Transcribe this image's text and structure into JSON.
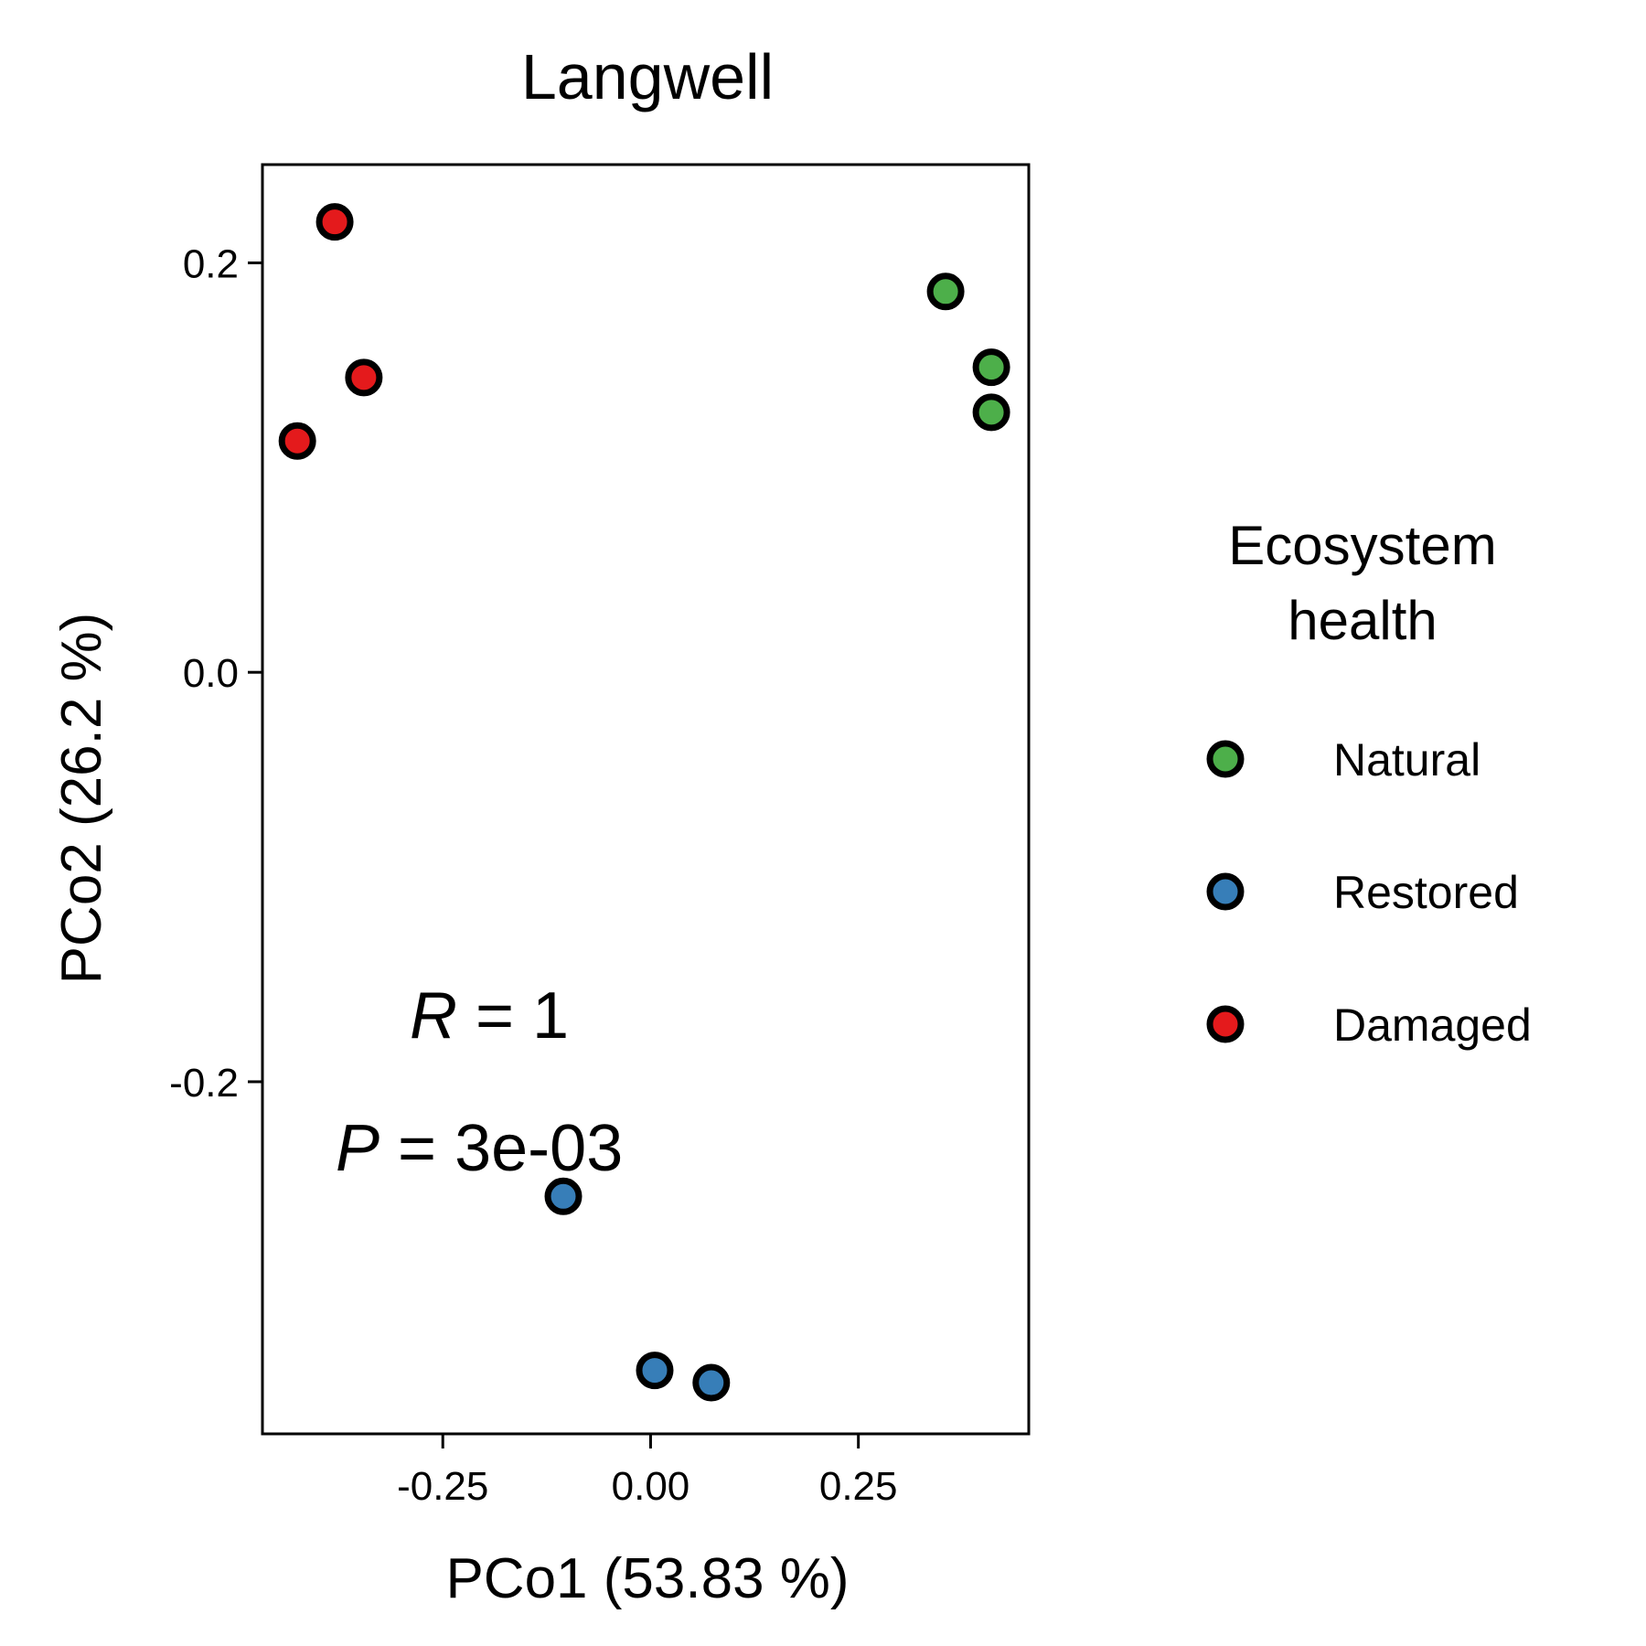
{
  "chart_data": {
    "type": "scatter",
    "title": "Langwell",
    "xlabel": "PCo1 (53.83 %)",
    "ylabel": "PCo2 (26.2 %)",
    "xlim": [
      -0.467,
      0.455
    ],
    "ylim": [
      -0.372,
      0.248
    ],
    "xticks": [
      -0.25,
      0.0,
      0.25
    ],
    "xtick_labels": [
      "-0.25",
      "0.00",
      "0.25"
    ],
    "yticks": [
      -0.2,
      0.0,
      0.2
    ],
    "ytick_labels": [
      "-0.2",
      "0.0",
      "0.2"
    ],
    "grid": false,
    "legend": {
      "title": "Ecosystem health",
      "title_lines": [
        "Ecosystem",
        "health"
      ],
      "placement": "right"
    },
    "series": [
      {
        "name": "Natural",
        "color": "#4daf4a",
        "points": [
          {
            "x": 0.355,
            "y": 0.186
          },
          {
            "x": 0.41,
            "y": 0.149
          },
          {
            "x": 0.41,
            "y": 0.127
          }
        ]
      },
      {
        "name": "Restored",
        "color": "#377eb8",
        "points": [
          {
            "x": -0.105,
            "y": -0.256
          },
          {
            "x": 0.005,
            "y": -0.341
          },
          {
            "x": 0.073,
            "y": -0.347
          }
        ]
      },
      {
        "name": "Damaged",
        "color": "#e41a1c",
        "points": [
          {
            "x": -0.38,
            "y": 0.22
          },
          {
            "x": -0.345,
            "y": 0.144
          },
          {
            "x": -0.425,
            "y": 0.113
          }
        ]
      }
    ],
    "annotations": [
      {
        "var": "R",
        "text": " = 1"
      },
      {
        "var": "P",
        "text": " = 3e-03"
      }
    ]
  }
}
